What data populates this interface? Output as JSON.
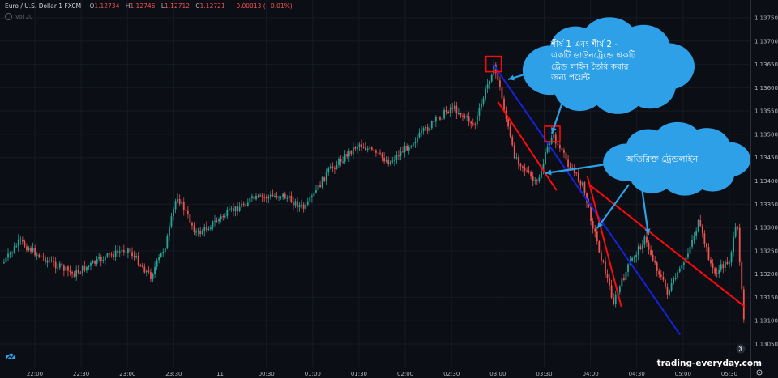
{
  "legend": {
    "symbol": "Euro / U.S. Dollar  1  FXCM",
    "o_label": "O",
    "o_value": "1.12734",
    "h_label": "H",
    "h_value": "1.12746",
    "l_label": "L",
    "l_value": "1.12712",
    "c_label": "C",
    "c_value": "1.12721",
    "change": "−0.00013 (−0.01%)",
    "volume_label": "Vol 20"
  },
  "watermark": "trading-everyday.com",
  "colors": {
    "background": "#0c0e15",
    "up": "#26a69a",
    "down": "#ef5350",
    "trendline_blue": "#1522e0",
    "trendline_red": "#ff0a0a",
    "cloud": "#2da0e8",
    "axis_text": "#b2b5be"
  },
  "annotations": {
    "cloud1_text": "শীর্ষ 1 এবং শীর্ষ 2 - একটি ডাউনট্রেন্ডে একটি ট্রেন্ড লাইন তৈরি করার জন্য পয়েন্ট",
    "cloud2_text": "অতিরিক্ত ট্রেন্ডলাইন"
  },
  "chart_data": {
    "type": "candlestick",
    "y_ticks": [
      "1.13750",
      "1.13700",
      "1.13650",
      "1.13600",
      "1.13550",
      "1.13500",
      "1.13450",
      "1.13400",
      "1.13350",
      "1.13300",
      "1.13250",
      "1.13200",
      "1.13150",
      "1.13100",
      "1.13050"
    ],
    "ylim": [
      1.1304,
      1.1378
    ],
    "x_ticks": [
      "22:00",
      "22:30",
      "23:00",
      "23:30",
      "11",
      "00:30",
      "01:00",
      "01:30",
      "02:00",
      "02:30",
      "03:00",
      "03:30",
      "04:00",
      "04:30",
      "05:00",
      "05:30"
    ],
    "price_path": [
      {
        "time": "21:40",
        "price": 1.13225
      },
      {
        "time": "21:50",
        "price": 1.1327
      },
      {
        "time": "22:05",
        "price": 1.13235
      },
      {
        "time": "22:25",
        "price": 1.132
      },
      {
        "time": "22:45",
        "price": 1.13235
      },
      {
        "time": "23:00",
        "price": 1.13255
      },
      {
        "time": "23:15",
        "price": 1.13195
      },
      {
        "time": "23:25",
        "price": 1.13265
      },
      {
        "time": "23:32",
        "price": 1.1337
      },
      {
        "time": "23:45",
        "price": 1.13285
      },
      {
        "time": "00:00",
        "price": 1.1332
      },
      {
        "time": "00:20",
        "price": 1.1336
      },
      {
        "time": "00:40",
        "price": 1.1337
      },
      {
        "time": "00:55",
        "price": 1.1334
      },
      {
        "time": "01:10",
        "price": 1.1342
      },
      {
        "time": "01:30",
        "price": 1.1348
      },
      {
        "time": "01:50",
        "price": 1.1344
      },
      {
        "time": "02:10",
        "price": 1.135
      },
      {
        "time": "02:30",
        "price": 1.1356
      },
      {
        "time": "02:45",
        "price": 1.1352
      },
      {
        "time": "02:57",
        "price": 1.13645
      },
      {
        "time": "03:00",
        "price": 1.1362
      },
      {
        "time": "03:10",
        "price": 1.1346
      },
      {
        "time": "03:25",
        "price": 1.1339
      },
      {
        "time": "03:35",
        "price": 1.135
      },
      {
        "time": "03:45",
        "price": 1.1344
      },
      {
        "time": "03:55",
        "price": 1.1339
      },
      {
        "time": "04:05",
        "price": 1.1326
      },
      {
        "time": "04:15",
        "price": 1.1314
      },
      {
        "time": "04:25",
        "price": 1.1322
      },
      {
        "time": "04:35",
        "price": 1.13275
      },
      {
        "time": "04:50",
        "price": 1.1316
      },
      {
        "time": "05:00",
        "price": 1.1322
      },
      {
        "time": "05:10",
        "price": 1.1331
      },
      {
        "time": "05:20",
        "price": 1.132
      },
      {
        "time": "05:30",
        "price": 1.1323
      },
      {
        "time": "05:35",
        "price": 1.1331
      },
      {
        "time": "05:40",
        "price": 1.1308
      }
    ],
    "peak_markers": [
      {
        "time": "02:57",
        "price": 1.1365
      },
      {
        "time": "03:35",
        "price": 1.135
      }
    ],
    "trendlines": [
      {
        "color": "blue",
        "from": {
          "time": "02:57",
          "price": 1.1365
        },
        "to": {
          "time": "04:58",
          "price": 1.1307
        }
      },
      {
        "color": "red",
        "from": {
          "time": "03:00",
          "price": 1.1357
        },
        "to": {
          "time": "03:38",
          "price": 1.1338
        }
      },
      {
        "color": "red",
        "from": {
          "time": "03:58",
          "price": 1.1341
        },
        "to": {
          "time": "04:20",
          "price": 1.1313
        }
      },
      {
        "color": "red",
        "from": {
          "time": "04:00",
          "price": 1.1339
        },
        "to": {
          "time": "05:40",
          "price": 1.1313
        }
      }
    ]
  }
}
